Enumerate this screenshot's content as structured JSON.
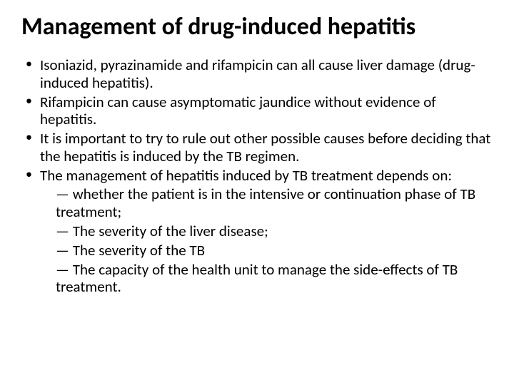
{
  "title": "Management of drug-induced hepatitis",
  "title_fontsize": 34,
  "title_weight": 700,
  "body_fontsize": 21,
  "body_weight": 400,
  "line_height": 1.18,
  "background_color": "#ffffff",
  "text_color": "#000000",
  "bullets": [
    {
      "text": " Isoniazid, pyrazinamide and rifampicin can all cause liver damage (drug-induced hepatitis)."
    },
    {
      "text": "Rifampicin can cause asymptomatic jaundice without evidence of hepatitis."
    },
    {
      "text": "It is important to try to rule out other possible causes before deciding that the hepatitis is induced by the TB regimen."
    },
    {
      "text": "The management of hepatitis induced by TB treatment depends on:",
      "sub": [
        "— whether the patient is in the intensive or continuation phase of TB treatment;",
        "— The severity of the liver disease;",
        "— The severity of the TB",
        "— The capacity of the health unit to manage the side-effects of TB treatment."
      ]
    }
  ]
}
